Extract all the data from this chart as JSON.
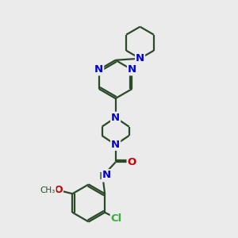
{
  "bg_color": "#ebebeb",
  "bond_color": "#2a4a2a",
  "N_color": "#0000cc",
  "O_color": "#cc0000",
  "Cl_color": "#3aaa3a",
  "H_color": "#557755",
  "line_width": 1.6,
  "font_size": 9.5,
  "xlim": [
    0,
    10
  ],
  "ylim": [
    0,
    10
  ]
}
